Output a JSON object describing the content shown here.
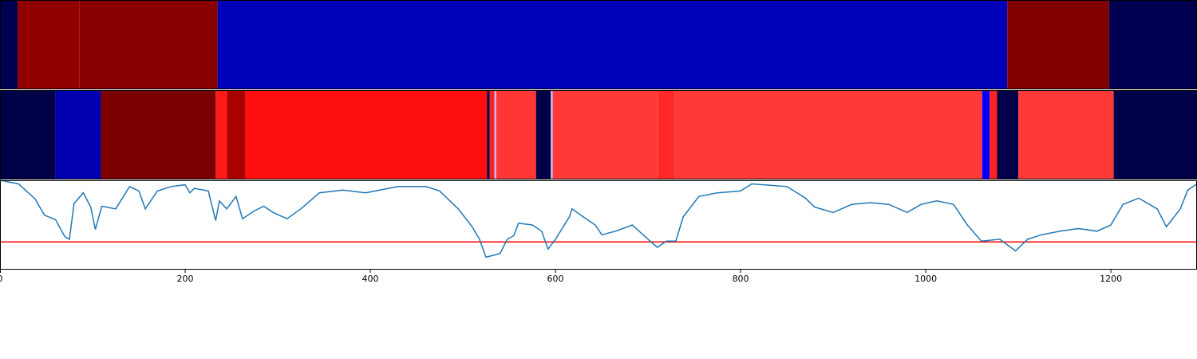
{
  "chart_data": [
    {
      "type": "heatmap",
      "xlim": [
        0,
        1293
      ],
      "segments": [
        {
          "start": 0,
          "end": 19,
          "color": "#000050"
        },
        {
          "start": 19,
          "end": 86,
          "color": "#900000"
        },
        {
          "start": 86,
          "end": 235,
          "color": "#880000"
        },
        {
          "start": 235,
          "end": 1088,
          "color": "#0000b8"
        },
        {
          "start": 1088,
          "end": 1198,
          "color": "#800000"
        },
        {
          "start": 1198,
          "end": 1293,
          "color": "#000050"
        }
      ]
    },
    {
      "type": "heatmap",
      "xlim": [
        0,
        1293
      ],
      "segments": [
        {
          "start": 0,
          "end": 60,
          "color": "#000048"
        },
        {
          "start": 60,
          "end": 109,
          "color": "#0000b0"
        },
        {
          "start": 109,
          "end": 233,
          "color": "#7a0000"
        },
        {
          "start": 233,
          "end": 245,
          "color": "#ff1a1a"
        },
        {
          "start": 245,
          "end": 265,
          "color": "#aa0000"
        },
        {
          "start": 265,
          "end": 526,
          "color": "#ff0e0e"
        },
        {
          "start": 526,
          "end": 529,
          "color": "#000048"
        },
        {
          "start": 529,
          "end": 534,
          "color": "#ff2020"
        },
        {
          "start": 534,
          "end": 536,
          "color": "#c0c0ff"
        },
        {
          "start": 536,
          "end": 579,
          "color": "#ff3636"
        },
        {
          "start": 579,
          "end": 595,
          "color": "#000048"
        },
        {
          "start": 595,
          "end": 597,
          "color": "#c0c0ff"
        },
        {
          "start": 597,
          "end": 711,
          "color": "#ff3838"
        },
        {
          "start": 711,
          "end": 729,
          "color": "#ff2828"
        },
        {
          "start": 729,
          "end": 1061,
          "color": "#ff3838"
        },
        {
          "start": 1061,
          "end": 1069,
          "color": "#0000ff"
        },
        {
          "start": 1069,
          "end": 1077,
          "color": "#ff2020"
        },
        {
          "start": 1077,
          "end": 1100,
          "color": "#000048"
        },
        {
          "start": 1100,
          "end": 1203,
          "color": "#ff3838"
        },
        {
          "start": 1203,
          "end": 1293,
          "color": "#000048"
        }
      ]
    },
    {
      "type": "line",
      "xlim": [
        0,
        1293
      ],
      "xticks": [
        0,
        200,
        400,
        600,
        800,
        1000,
        1200
      ],
      "ylim": [
        0,
        1
      ],
      "color": "#1f77b4",
      "threshold": 0.31,
      "threshold_color": "#ff0000",
      "x": [
        0,
        20,
        38,
        48,
        60,
        70,
        75,
        80,
        90,
        98,
        103,
        110,
        125,
        140,
        150,
        157,
        170,
        185,
        200,
        205,
        210,
        225,
        233,
        237,
        245,
        255,
        262,
        275,
        285,
        295,
        310,
        325,
        345,
        370,
        395,
        430,
        460,
        475,
        495,
        510,
        518,
        525,
        540,
        548,
        555,
        560,
        575,
        585,
        592,
        600,
        615,
        618,
        630,
        643,
        650,
        665,
        683,
        700,
        710,
        720,
        730,
        738,
        755,
        775,
        800,
        812,
        850,
        870,
        880,
        900,
        920,
        940,
        960,
        980,
        995,
        1012,
        1030,
        1045,
        1060,
        1080,
        1097,
        1110,
        1125,
        1145,
        1165,
        1185,
        1200,
        1213,
        1230,
        1250,
        1260,
        1275,
        1283,
        1293
      ],
      "values": [
        1.0,
        0.96,
        0.79,
        0.61,
        0.56,
        0.37,
        0.34,
        0.74,
        0.86,
        0.7,
        0.45,
        0.71,
        0.68,
        0.93,
        0.88,
        0.68,
        0.88,
        0.93,
        0.95,
        0.86,
        0.91,
        0.88,
        0.55,
        0.77,
        0.68,
        0.82,
        0.57,
        0.66,
        0.71,
        0.64,
        0.57,
        0.68,
        0.86,
        0.89,
        0.86,
        0.93,
        0.93,
        0.88,
        0.68,
        0.48,
        0.34,
        0.14,
        0.18,
        0.34,
        0.38,
        0.52,
        0.5,
        0.43,
        0.23,
        0.34,
        0.59,
        0.68,
        0.59,
        0.5,
        0.39,
        0.43,
        0.5,
        0.34,
        0.25,
        0.32,
        0.32,
        0.59,
        0.82,
        0.86,
        0.88,
        0.96,
        0.93,
        0.8,
        0.7,
        0.64,
        0.73,
        0.75,
        0.73,
        0.64,
        0.73,
        0.77,
        0.73,
        0.5,
        0.32,
        0.34,
        0.21,
        0.34,
        0.39,
        0.43,
        0.46,
        0.43,
        0.5,
        0.73,
        0.8,
        0.68,
        0.48,
        0.68,
        0.89,
        0.96
      ]
    }
  ]
}
